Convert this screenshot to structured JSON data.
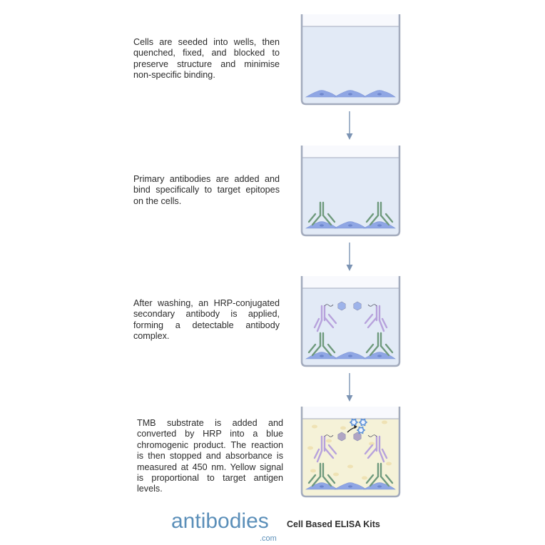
{
  "steps": [
    {
      "text": "Cells are seeded into wells, then quenched, fixed, and blocked to preserve structure and minimise non-specific binding.",
      "well": "cells"
    },
    {
      "text": "Primary antibodies are added and bind specifically to target epitopes on the cells.",
      "well": "primary"
    },
    {
      "text": "After washing, an HRP-conjugated secondary antibody is applied, forming a detectable antibody complex.",
      "well": "secondary"
    },
    {
      "text": "TMB substrate is added and converted by HRP into a blue chromogenic product. The reaction is then stopped  and absorbance is measured at 450 nm. Yellow signal is proportional to target antigen levels.",
      "well": "substrate"
    }
  ],
  "logo": {
    "name": "antibodies",
    "suffix": ".com"
  },
  "tagline": "Cell Based ELISA Kits",
  "colors": {
    "well_fill": "#e2eaf6",
    "well_stroke": "#a3abbd",
    "substrate_fill": "#f5f2d8",
    "cell": "#8fa6e4",
    "primary_antibody": "#6f9a7d",
    "secondary_antibody": "#b7a2dc",
    "hrp": "#9db3ea",
    "hrp_reacted": "#b0a5c4",
    "product": "#5a8fd8",
    "arrow": "#7b93b3",
    "logo": "#5b8fb9"
  }
}
